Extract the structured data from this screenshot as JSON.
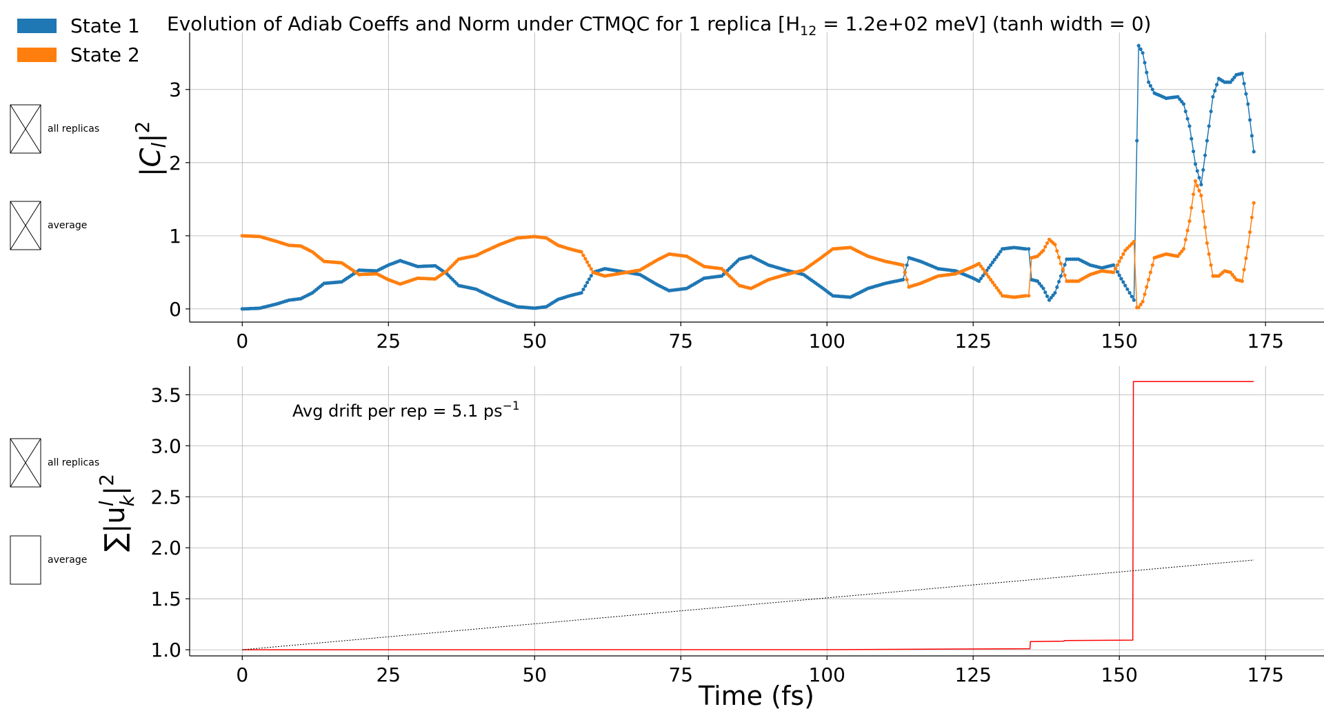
{
  "chart_data": [
    {
      "type": "scatter",
      "title": "Evolution of Adiab Coeffs and Norm under CTMQC for 1 replica [H",
      "title_sub": "12",
      "title_tail": " = 1.2e+02 meV]   (tanh width = 0)",
      "ylabel": "|C",
      "ylabel_sub": "l",
      "ylabel_tail": "|",
      "ylabel_sup": "2",
      "xlim": [
        -9,
        185
      ],
      "ylim": [
        -0.18,
        3.78
      ],
      "xticks": [
        "0",
        "25",
        "50",
        "75",
        "100",
        "125",
        "150",
        "175"
      ],
      "xtick_values": [
        0,
        25,
        50,
        75,
        100,
        125,
        150,
        175
      ],
      "yticks": [
        "0",
        "1",
        "2",
        "3"
      ],
      "ytick_values": [
        0,
        1,
        2,
        3
      ],
      "grid": true,
      "series": [
        {
          "name": "State 1",
          "color": "#1f77b4",
          "points": [
            [
              0,
              0.0
            ],
            [
              3,
              0.01
            ],
            [
              6,
              0.07
            ],
            [
              8,
              0.12
            ],
            [
              10,
              0.14
            ],
            [
              12,
              0.22
            ],
            [
              14,
              0.35
            ],
            [
              17,
              0.37
            ],
            [
              20,
              0.53
            ],
            [
              23,
              0.52
            ],
            [
              25,
              0.6
            ],
            [
              27,
              0.66
            ],
            [
              30,
              0.58
            ],
            [
              33,
              0.59
            ],
            [
              35,
              0.48
            ],
            [
              37,
              0.32
            ],
            [
              40,
              0.27
            ],
            [
              41,
              0.23
            ],
            [
              44,
              0.12
            ],
            [
              47,
              0.03
            ],
            [
              50,
              0.01
            ],
            [
              52,
              0.03
            ],
            [
              54,
              0.13
            ],
            [
              56,
              0.18
            ],
            [
              58,
              0.22
            ],
            [
              60,
              0.5
            ],
            [
              62,
              0.55
            ],
            [
              65,
              0.51
            ],
            [
              68,
              0.47
            ],
            [
              71,
              0.33
            ],
            [
              73,
              0.25
            ],
            [
              76,
              0.28
            ],
            [
              79,
              0.42
            ],
            [
              82,
              0.45
            ],
            [
              85,
              0.68
            ],
            [
              87,
              0.72
            ],
            [
              90,
              0.6
            ],
            [
              93,
              0.53
            ],
            [
              96,
              0.47
            ],
            [
              99,
              0.3
            ],
            [
              101,
              0.18
            ],
            [
              104,
              0.16
            ],
            [
              107,
              0.28
            ],
            [
              110,
              0.35
            ],
            [
              113,
              0.4
            ],
            [
              114,
              0.7
            ],
            [
              116,
              0.65
            ],
            [
              119,
              0.55
            ],
            [
              122,
              0.52
            ],
            [
              125,
              0.42
            ],
            [
              126,
              0.38
            ],
            [
              128,
              0.6
            ],
            [
              130,
              0.82
            ],
            [
              132,
              0.84
            ],
            [
              134,
              0.82
            ],
            [
              134.5,
              0.82
            ],
            [
              135,
              0.4
            ],
            [
              136,
              0.38
            ],
            [
              137,
              0.28
            ],
            [
              138,
              0.12
            ],
            [
              139,
              0.22
            ],
            [
              140,
              0.45
            ],
            [
              141,
              0.68
            ],
            [
              143,
              0.68
            ],
            [
              145,
              0.6
            ],
            [
              147,
              0.56
            ],
            [
              149,
              0.6
            ],
            [
              151,
              0.32
            ],
            [
              152.5,
              0.12
            ],
            [
              153,
              2.3
            ],
            [
              153.3,
              3.6
            ],
            [
              154,
              3.5
            ],
            [
              155,
              3.1
            ],
            [
              156,
              2.95
            ],
            [
              158,
              2.88
            ],
            [
              160,
              2.9
            ],
            [
              161,
              2.8
            ],
            [
              162,
              2.5
            ],
            [
              163,
              1.98
            ],
            [
              164,
              1.7
            ],
            [
              165,
              2.3
            ],
            [
              166,
              2.9
            ],
            [
              167,
              3.15
            ],
            [
              168,
              3.1
            ],
            [
              169,
              3.1
            ],
            [
              170,
              3.2
            ],
            [
              171,
              3.22
            ],
            [
              172,
              2.8
            ],
            [
              173,
              2.15
            ]
          ]
        },
        {
          "name": "State 2",
          "color": "#ff7f0e",
          "points": [
            [
              0,
              1.0
            ],
            [
              3,
              0.99
            ],
            [
              6,
              0.92
            ],
            [
              8,
              0.87
            ],
            [
              10,
              0.86
            ],
            [
              12,
              0.78
            ],
            [
              14,
              0.65
            ],
            [
              17,
              0.63
            ],
            [
              20,
              0.47
            ],
            [
              23,
              0.48
            ],
            [
              25,
              0.4
            ],
            [
              27,
              0.34
            ],
            [
              30,
              0.42
            ],
            [
              33,
              0.41
            ],
            [
              35,
              0.52
            ],
            [
              37,
              0.68
            ],
            [
              40,
              0.73
            ],
            [
              41,
              0.77
            ],
            [
              44,
              0.88
            ],
            [
              47,
              0.97
            ],
            [
              50,
              0.99
            ],
            [
              52,
              0.97
            ],
            [
              54,
              0.87
            ],
            [
              56,
              0.82
            ],
            [
              58,
              0.78
            ],
            [
              60,
              0.5
            ],
            [
              62,
              0.45
            ],
            [
              65,
              0.49
            ],
            [
              68,
              0.53
            ],
            [
              71,
              0.67
            ],
            [
              73,
              0.75
            ],
            [
              76,
              0.72
            ],
            [
              79,
              0.58
            ],
            [
              82,
              0.55
            ],
            [
              85,
              0.32
            ],
            [
              87,
              0.28
            ],
            [
              90,
              0.4
            ],
            [
              93,
              0.47
            ],
            [
              96,
              0.53
            ],
            [
              99,
              0.7
            ],
            [
              101,
              0.82
            ],
            [
              104,
              0.84
            ],
            [
              107,
              0.72
            ],
            [
              110,
              0.65
            ],
            [
              113,
              0.6
            ],
            [
              114,
              0.3
            ],
            [
              116,
              0.35
            ],
            [
              119,
              0.45
            ],
            [
              122,
              0.48
            ],
            [
              125,
              0.58
            ],
            [
              126,
              0.62
            ],
            [
              128,
              0.4
            ],
            [
              130,
              0.18
            ],
            [
              132,
              0.16
            ],
            [
              134,
              0.18
            ],
            [
              134.5,
              0.18
            ],
            [
              135,
              0.7
            ],
            [
              136,
              0.72
            ],
            [
              137,
              0.8
            ],
            [
              138,
              0.95
            ],
            [
              139,
              0.88
            ],
            [
              140,
              0.62
            ],
            [
              141,
              0.38
            ],
            [
              143,
              0.38
            ],
            [
              145,
              0.47
            ],
            [
              147,
              0.52
            ],
            [
              149,
              0.5
            ],
            [
              151,
              0.8
            ],
            [
              152.5,
              0.92
            ],
            [
              153,
              0.02
            ],
            [
              153.3,
              0.02
            ],
            [
              154,
              0.1
            ],
            [
              155,
              0.4
            ],
            [
              156,
              0.7
            ],
            [
              158,
              0.75
            ],
            [
              160,
              0.72
            ],
            [
              161,
              0.82
            ],
            [
              162,
              1.2
            ],
            [
              163,
              1.75
            ],
            [
              164,
              1.55
            ],
            [
              165,
              0.9
            ],
            [
              166,
              0.45
            ],
            [
              167,
              0.45
            ],
            [
              168,
              0.52
            ],
            [
              169,
              0.5
            ],
            [
              170,
              0.4
            ],
            [
              171,
              0.38
            ],
            [
              172,
              0.85
            ],
            [
              173,
              1.45
            ]
          ]
        }
      ]
    },
    {
      "type": "line",
      "title": "",
      "xlabel": "Time (fs)",
      "ylabel": "∑|u",
      "ylabel_sub_k": "k",
      "ylabel_sup_l": "l",
      "ylabel_tail": "|",
      "ylabel_sup": "2",
      "xlim": [
        -9,
        185
      ],
      "ylim": [
        0.94,
        3.78
      ],
      "xticks": [
        "0",
        "25",
        "50",
        "75",
        "100",
        "125",
        "150",
        "175"
      ],
      "xtick_values": [
        0,
        25,
        50,
        75,
        100,
        125,
        150,
        175
      ],
      "yticks": [
        "1.0",
        "1.5",
        "2.0",
        "2.5",
        "3.0",
        "3.5"
      ],
      "ytick_values": [
        1.0,
        1.5,
        2.0,
        2.5,
        3.0,
        3.5
      ],
      "grid": true,
      "annotation": "Avg drift per rep = 5.1 ps",
      "annotation_sup": "−1",
      "series": [
        {
          "color": "#ff0000",
          "style": "solid",
          "points": [
            [
              0,
              1.0
            ],
            [
              40,
              1.0
            ],
            [
              100,
              1.001
            ],
            [
              134.7,
              1.01
            ],
            [
              134.8,
              1.08
            ],
            [
              140.5,
              1.085
            ],
            [
              140.6,
              1.09
            ],
            [
              152.3,
              1.095
            ],
            [
              152.4,
              3.63
            ],
            [
              173,
              3.63
            ]
          ]
        },
        {
          "color": "#000000",
          "style": "dotted",
          "points": [
            [
              0,
              1.0
            ],
            [
              173,
              1.88
            ]
          ]
        }
      ]
    }
  ],
  "legend": {
    "items": [
      {
        "label": "State 1",
        "color": "#1f77b4"
      },
      {
        "label": "State 2",
        "color": "#ff7f0e"
      }
    ]
  },
  "controls": {
    "top_all_replicas": "all replicas",
    "top_average": "average",
    "bottom_all_replicas": "all replicas",
    "bottom_average": "average"
  }
}
